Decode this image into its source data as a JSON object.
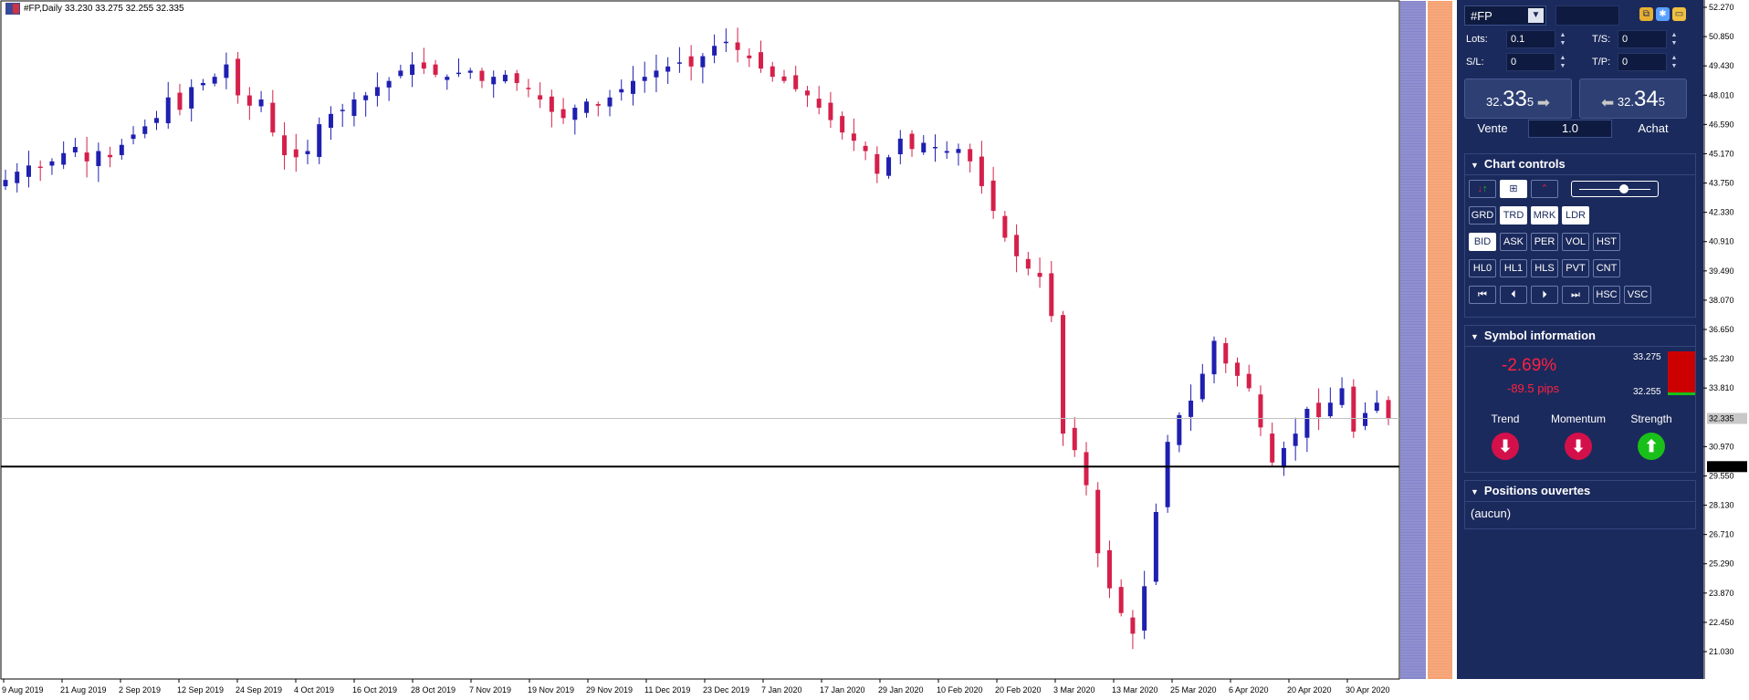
{
  "window": {
    "header_text": "#FP,Daily  33.230 33.275 32.255 32.335"
  },
  "chart": {
    "y_ticks": [
      "52.270",
      "50.850",
      "49.430",
      "48.010",
      "46.590",
      "45.170",
      "43.750",
      "42.330",
      "40.910",
      "39.490",
      "38.070",
      "36.650",
      "35.230",
      "33.810",
      "32.335",
      "30.970",
      "30.000",
      "29.550",
      "28.130",
      "26.710",
      "25.290",
      "23.870",
      "22.450",
      "21.030"
    ],
    "x_ticks": [
      "9 Aug 2019",
      "21 Aug 2019",
      "2 Sep 2019",
      "12 Sep 2019",
      "24 Sep 2019",
      "4 Oct 2019",
      "16 Oct 2019",
      "28 Oct 2019",
      "7 Nov 2019",
      "19 Nov 2019",
      "29 Nov 2019",
      "11 Dec 2019",
      "23 Dec 2019",
      "7 Jan 2020",
      "17 Jan 2020",
      "29 Jan 2020",
      "10 Feb 2020",
      "20 Feb 2020",
      "3 Mar 2020",
      "13 Mar 2020",
      "25 Mar 2020",
      "6 Apr 2020",
      "20 Apr 2020",
      "30 Apr 2020"
    ],
    "current_price_label": "32.335",
    "level_label": "30.000",
    "colors": {
      "bull": "#1f1fb0",
      "bear": "#d4204a",
      "level": "#000000",
      "strip_blue": "#8585cc",
      "strip_orange": "#f5a070"
    }
  },
  "chart_data": {
    "type": "candlestick",
    "symbol": "#FP",
    "timeframe": "Daily",
    "last": {
      "open": 33.23,
      "high": 33.275,
      "low": 32.255,
      "close": 32.335
    },
    "horizontal_level": 30.0,
    "ylim": [
      21.03,
      52.27
    ],
    "closes_approx": [
      43.9,
      44.3,
      44.6,
      44.5,
      44.8,
      45.2,
      45.5,
      44.8,
      45.3,
      45.0,
      45.6,
      46.1,
      46.5,
      46.9,
      47.9,
      47.3,
      48.4,
      48.6,
      48.9,
      49.5,
      48.0,
      47.5,
      47.8,
      46.2,
      45.1,
      45.0,
      45.3,
      46.6,
      47.1,
      47.3,
      47.8,
      48.0,
      48.4,
      48.7,
      49.2,
      49.5,
      49.3,
      49.0,
      48.9,
      49.1,
      49.2,
      48.7,
      48.9,
      49.0,
      48.6,
      48.3,
      47.8,
      47.2,
      46.9,
      47.4,
      47.7,
      47.5,
      47.9,
      48.3,
      48.7,
      48.9,
      49.2,
      49.4,
      49.6,
      49.4,
      49.9,
      50.4,
      50.6,
      50.2,
      49.8,
      49.3,
      48.9,
      48.7,
      48.3,
      48.0,
      47.4,
      46.8,
      46.2,
      45.8,
      45.3,
      44.2,
      45.0,
      45.9,
      45.4,
      45.7,
      45.5,
      45.3,
      45.4,
      44.8,
      43.6,
      42.4,
      41.1,
      40.2,
      39.6,
      39.2,
      37.3,
      31.6,
      30.8,
      29.1,
      25.8,
      24.1,
      22.9,
      21.9,
      24.2,
      27.8,
      31.2,
      32.5,
      33.2,
      34.5,
      36.1,
      35.0,
      34.4,
      33.8,
      31.9,
      30.2,
      30.9,
      31.6,
      32.8,
      32.4,
      33.1,
      33.8,
      31.7,
      32.6,
      33.1,
      32.335
    ]
  },
  "panel": {
    "symbol": "#FP",
    "dropdown_glyph": "▼",
    "lots_label": "Lots:",
    "lots_value": "0.1",
    "sl_label": "S/L:",
    "sl_value": "0",
    "ts_label": "T/S:",
    "ts_value": "0",
    "tp_label": "T/P:",
    "tp_value": "0",
    "sell_small": "32.",
    "sell_big": "33",
    "sell_tail": "5",
    "buy_small": "32.",
    "buy_big": "34",
    "buy_tail": "5",
    "sell_label": "Vente",
    "buy_label": "Achat",
    "quantity": "1.0",
    "chart_controls_title": "Chart controls",
    "row2": [
      "GRD",
      "TRD",
      "MRK",
      "LDR"
    ],
    "row3": [
      "BID",
      "ASK",
      "PER",
      "VOL",
      "HST"
    ],
    "row4": [
      "HL0",
      "HL1",
      "HLS",
      "PVT",
      "CNT"
    ],
    "row5_text": [
      "HSC",
      "VSC"
    ],
    "symbol_info_title": "Symbol information",
    "change_pct": "-2.69%",
    "change_pips": "-89.5 pips",
    "range_high": "33.275",
    "range_low": "32.255",
    "trend_label": "Trend",
    "momentum_label": "Momentum",
    "strength_label": "Strength",
    "positions_title": "Positions ouvertes",
    "positions_value": "(aucun)",
    "colors": {
      "bg": "#1b2a5c",
      "down": "#d4104a",
      "up": "#19c019",
      "range_red": "#cc0000"
    }
  }
}
